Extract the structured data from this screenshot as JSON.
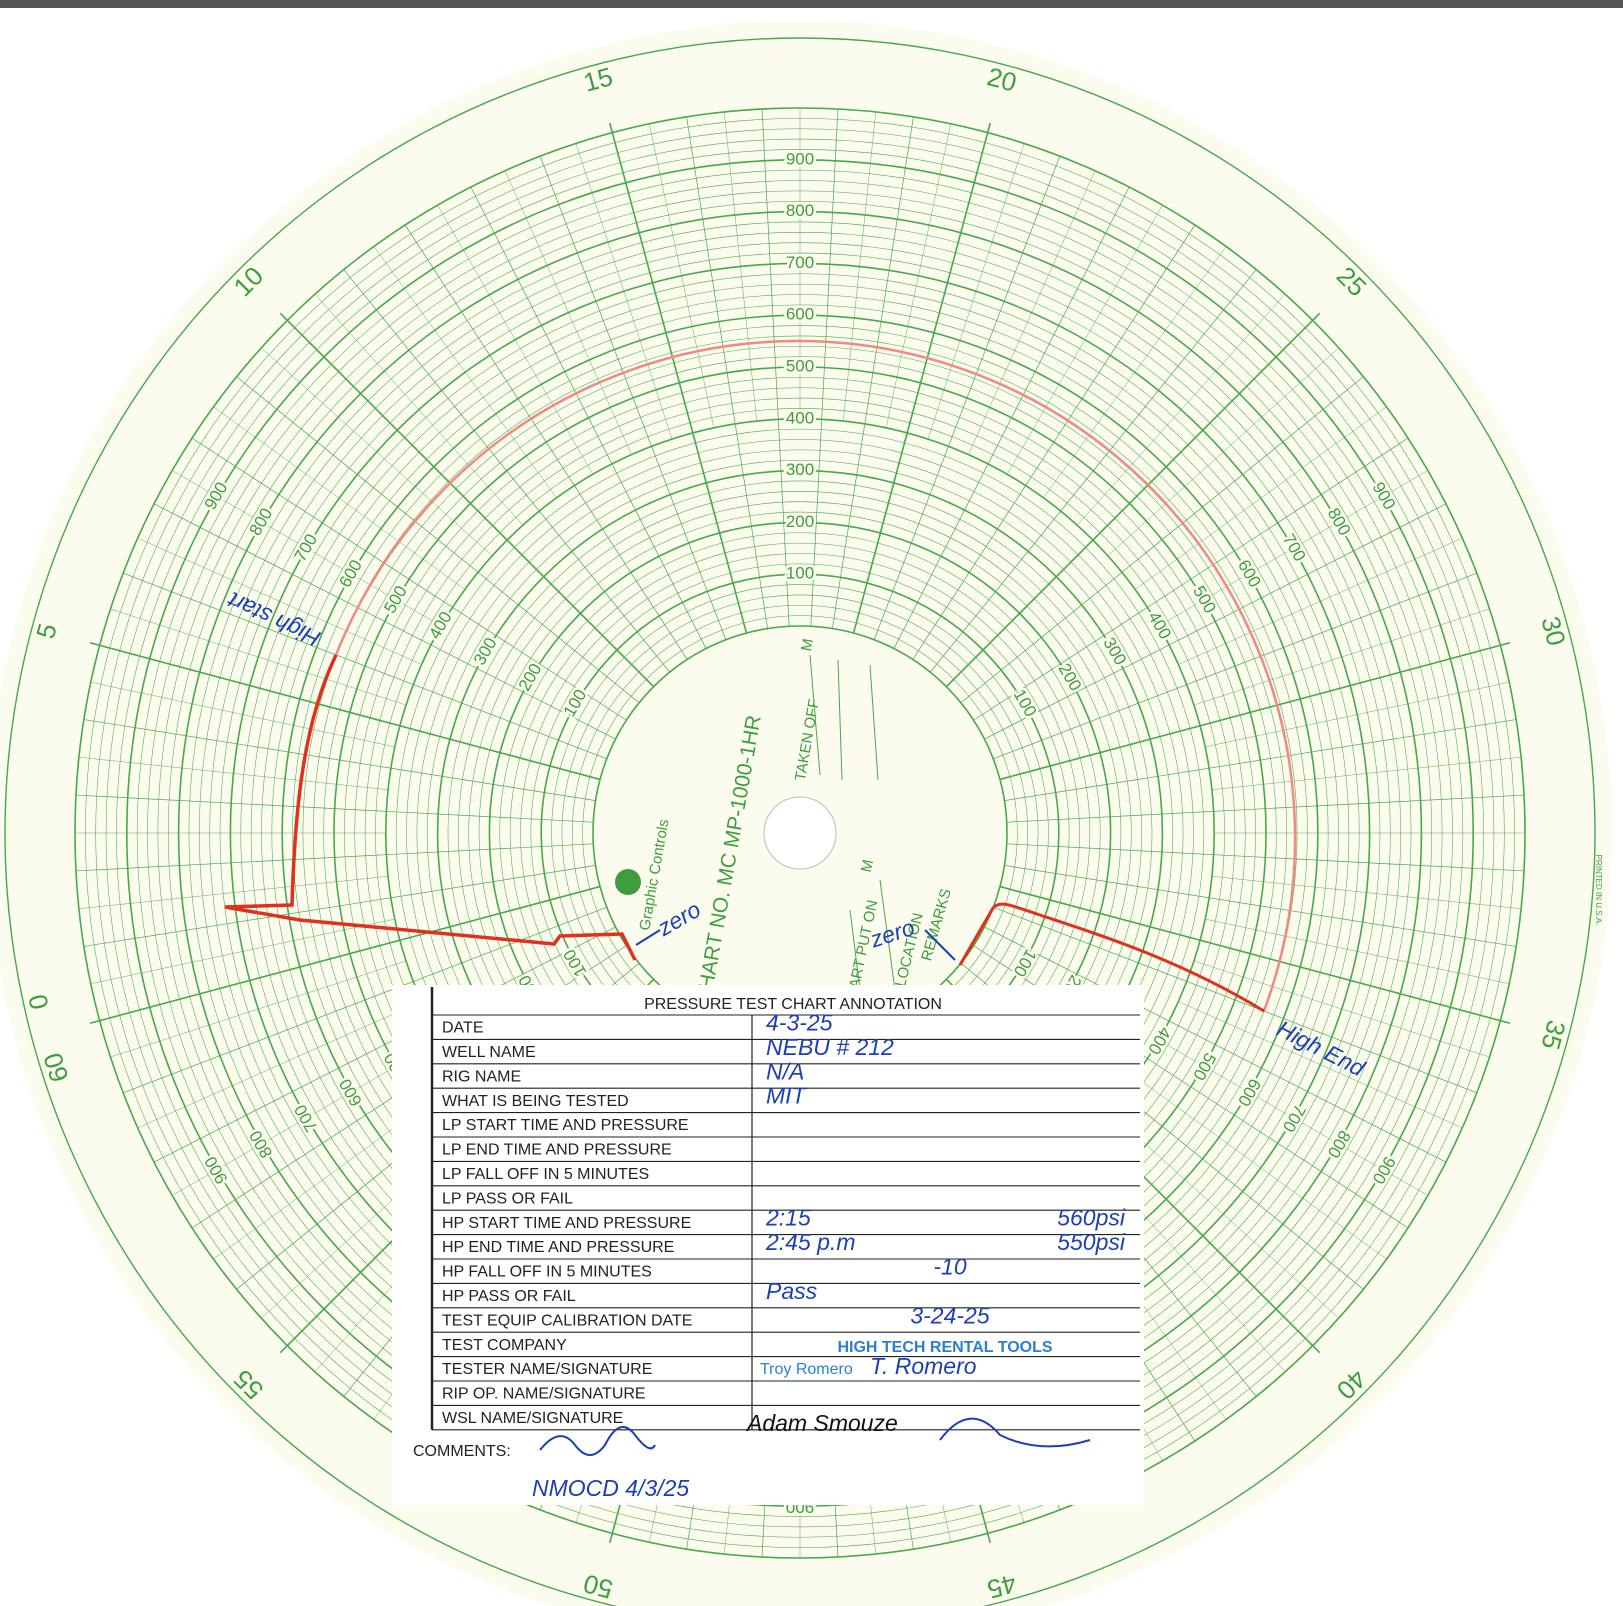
{
  "chart_face": {
    "model": "CHART NO. MC MP-1000-1HR",
    "maker": "Graphic Controls",
    "minute_labels": [
      "0",
      "5",
      "10",
      "15",
      "20",
      "25",
      "30",
      "35",
      "40",
      "45",
      "50",
      "55",
      "60"
    ],
    "pressure_labels": [
      "100",
      "200",
      "300",
      "400",
      "500",
      "600",
      "700",
      "800",
      "900"
    ],
    "taken_off": "TAKEN OFF",
    "taken_off_unit": "M",
    "put_on": "CHART PUT ON",
    "put_on_unit": "M",
    "location": "LOCATION",
    "remarks": "REMARKS",
    "printed": "PRINTED IN U.S.A."
  },
  "handwritten": {
    "high_start": "High start",
    "high_end": "High End",
    "zero_left": "zero",
    "zero_right": "zero"
  },
  "annotation_card": {
    "title": "PRESSURE TEST CHART ANNOTATION",
    "rows": [
      {
        "label": "DATE",
        "value": "4-3-25"
      },
      {
        "label": "WELL NAME",
        "value": "NEBU # 212"
      },
      {
        "label": "RIG NAME",
        "value": "N/A"
      },
      {
        "label": "WHAT IS BEING TESTED",
        "value": "MIT"
      },
      {
        "label": "LP START TIME AND PRESSURE"
      },
      {
        "label": "LP END TIME AND PRESSURE"
      },
      {
        "label": "LP FALL OFF IN 5 MINUTES"
      },
      {
        "label": "LP PASS OR FAIL"
      },
      {
        "label": "HP START TIME AND PRESSURE",
        "value": "2:15",
        "value_right": "560psi"
      },
      {
        "label": "HP END TIME AND PRESSURE",
        "value": "2:45 p.m",
        "value_right": "550psi"
      },
      {
        "label": "HP FALL OFF IN 5 MINUTES",
        "value_mid": "-10"
      },
      {
        "label": "HP PASS OR FAIL",
        "value": "Pass"
      },
      {
        "label": "TEST EQUIP CALIBRATION DATE",
        "value_mid": "3-24-25"
      },
      {
        "label": "TEST COMPANY",
        "company": "HIGH TECH RENTAL TOOLS"
      },
      {
        "label": "TESTER NAME/SIGNATURE",
        "printed_name": "Troy Romero",
        "signature": "T. Romero"
      },
      {
        "label": "RIP OP. NAME/SIGNATURE"
      },
      {
        "label": "WSL NAME/SIGNATURE",
        "ink_name": "Adam Smouze"
      }
    ],
    "comments_label": "COMMENTS:",
    "stamp": "NMOCD 4/3/25"
  }
}
